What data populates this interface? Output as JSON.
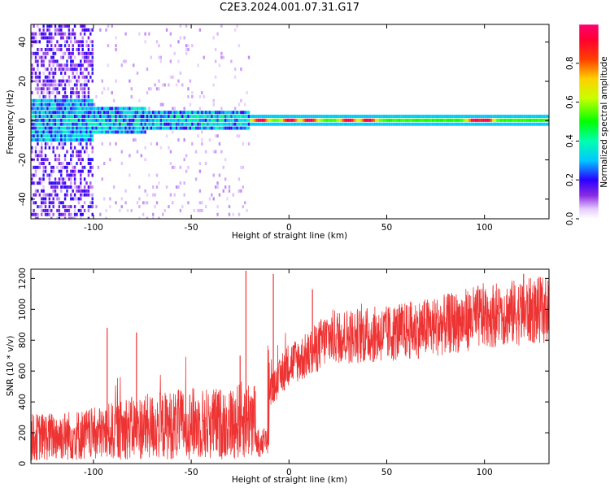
{
  "figure": {
    "title": "C2E3.2024.001.07.31.G17"
  },
  "chart_data": [
    {
      "type": "heatmap",
      "xlabel": "Height of straight line (km)",
      "ylabel": "Frequency (Hz)",
      "xlim": [
        -132,
        133
      ],
      "ylim": [
        -50,
        49
      ],
      "xticks": [
        -100,
        -50,
        0,
        50,
        100
      ],
      "yticks": [
        40,
        20,
        0,
        -20,
        -40
      ],
      "colorbar": {
        "label": "Normalized spectral amplitude",
        "range": [
          0.0,
          1.0
        ],
        "ticks": [
          0.0,
          0.2,
          0.4,
          0.6,
          0.8
        ],
        "colormap": [
          "#ffffff",
          "#e6ccff",
          "#8a2be2",
          "#4b00ff",
          "#0000ff",
          "#00c8ff",
          "#00ffc0",
          "#00ff00",
          "#c8ff00",
          "#ffd000",
          "#ff6000",
          "#ff0000",
          "#ff0070"
        ]
      },
      "band": {
        "center_hz": 0,
        "peak_amplitude_near_x": [
          -15,
          0,
          10,
          30,
          40,
          95,
          100
        ],
        "noisy_region_x": [
          -132,
          -100
        ],
        "dense_band_x": [
          -100,
          -20
        ]
      }
    },
    {
      "type": "line",
      "xlabel": "Height of straight line (km)",
      "ylabel": "SNR (10 * v/v)",
      "xlim": [
        -132,
        133
      ],
      "ylim": [
        0,
        1260
      ],
      "xticks": [
        -100,
        -50,
        0,
        50,
        100
      ],
      "yticks": [
        0,
        200,
        400,
        600,
        800,
        1000,
        1200
      ],
      "series": [
        {
          "color": "#ee3333",
          "trend_x": [
            -132,
            -100,
            -80,
            -50,
            -30,
            -20,
            -15,
            -10,
            -5,
            0,
            10,
            20,
            50,
            80,
            100,
            133
          ],
          "trend_y": [
            170,
            190,
            230,
            260,
            260,
            300,
            250,
            450,
            550,
            650,
            700,
            820,
            840,
            900,
            960,
            1000
          ],
          "spikes": [
            {
              "x": -22,
              "y": 1250
            },
            {
              "x": -8,
              "y": 1230
            },
            {
              "x": -25,
              "y": 700
            },
            {
              "x": -93,
              "y": 880
            },
            {
              "x": -78,
              "y": 850
            },
            {
              "x": 12,
              "y": 1130
            },
            {
              "x": 120,
              "y": 1230
            }
          ]
        }
      ]
    }
  ]
}
